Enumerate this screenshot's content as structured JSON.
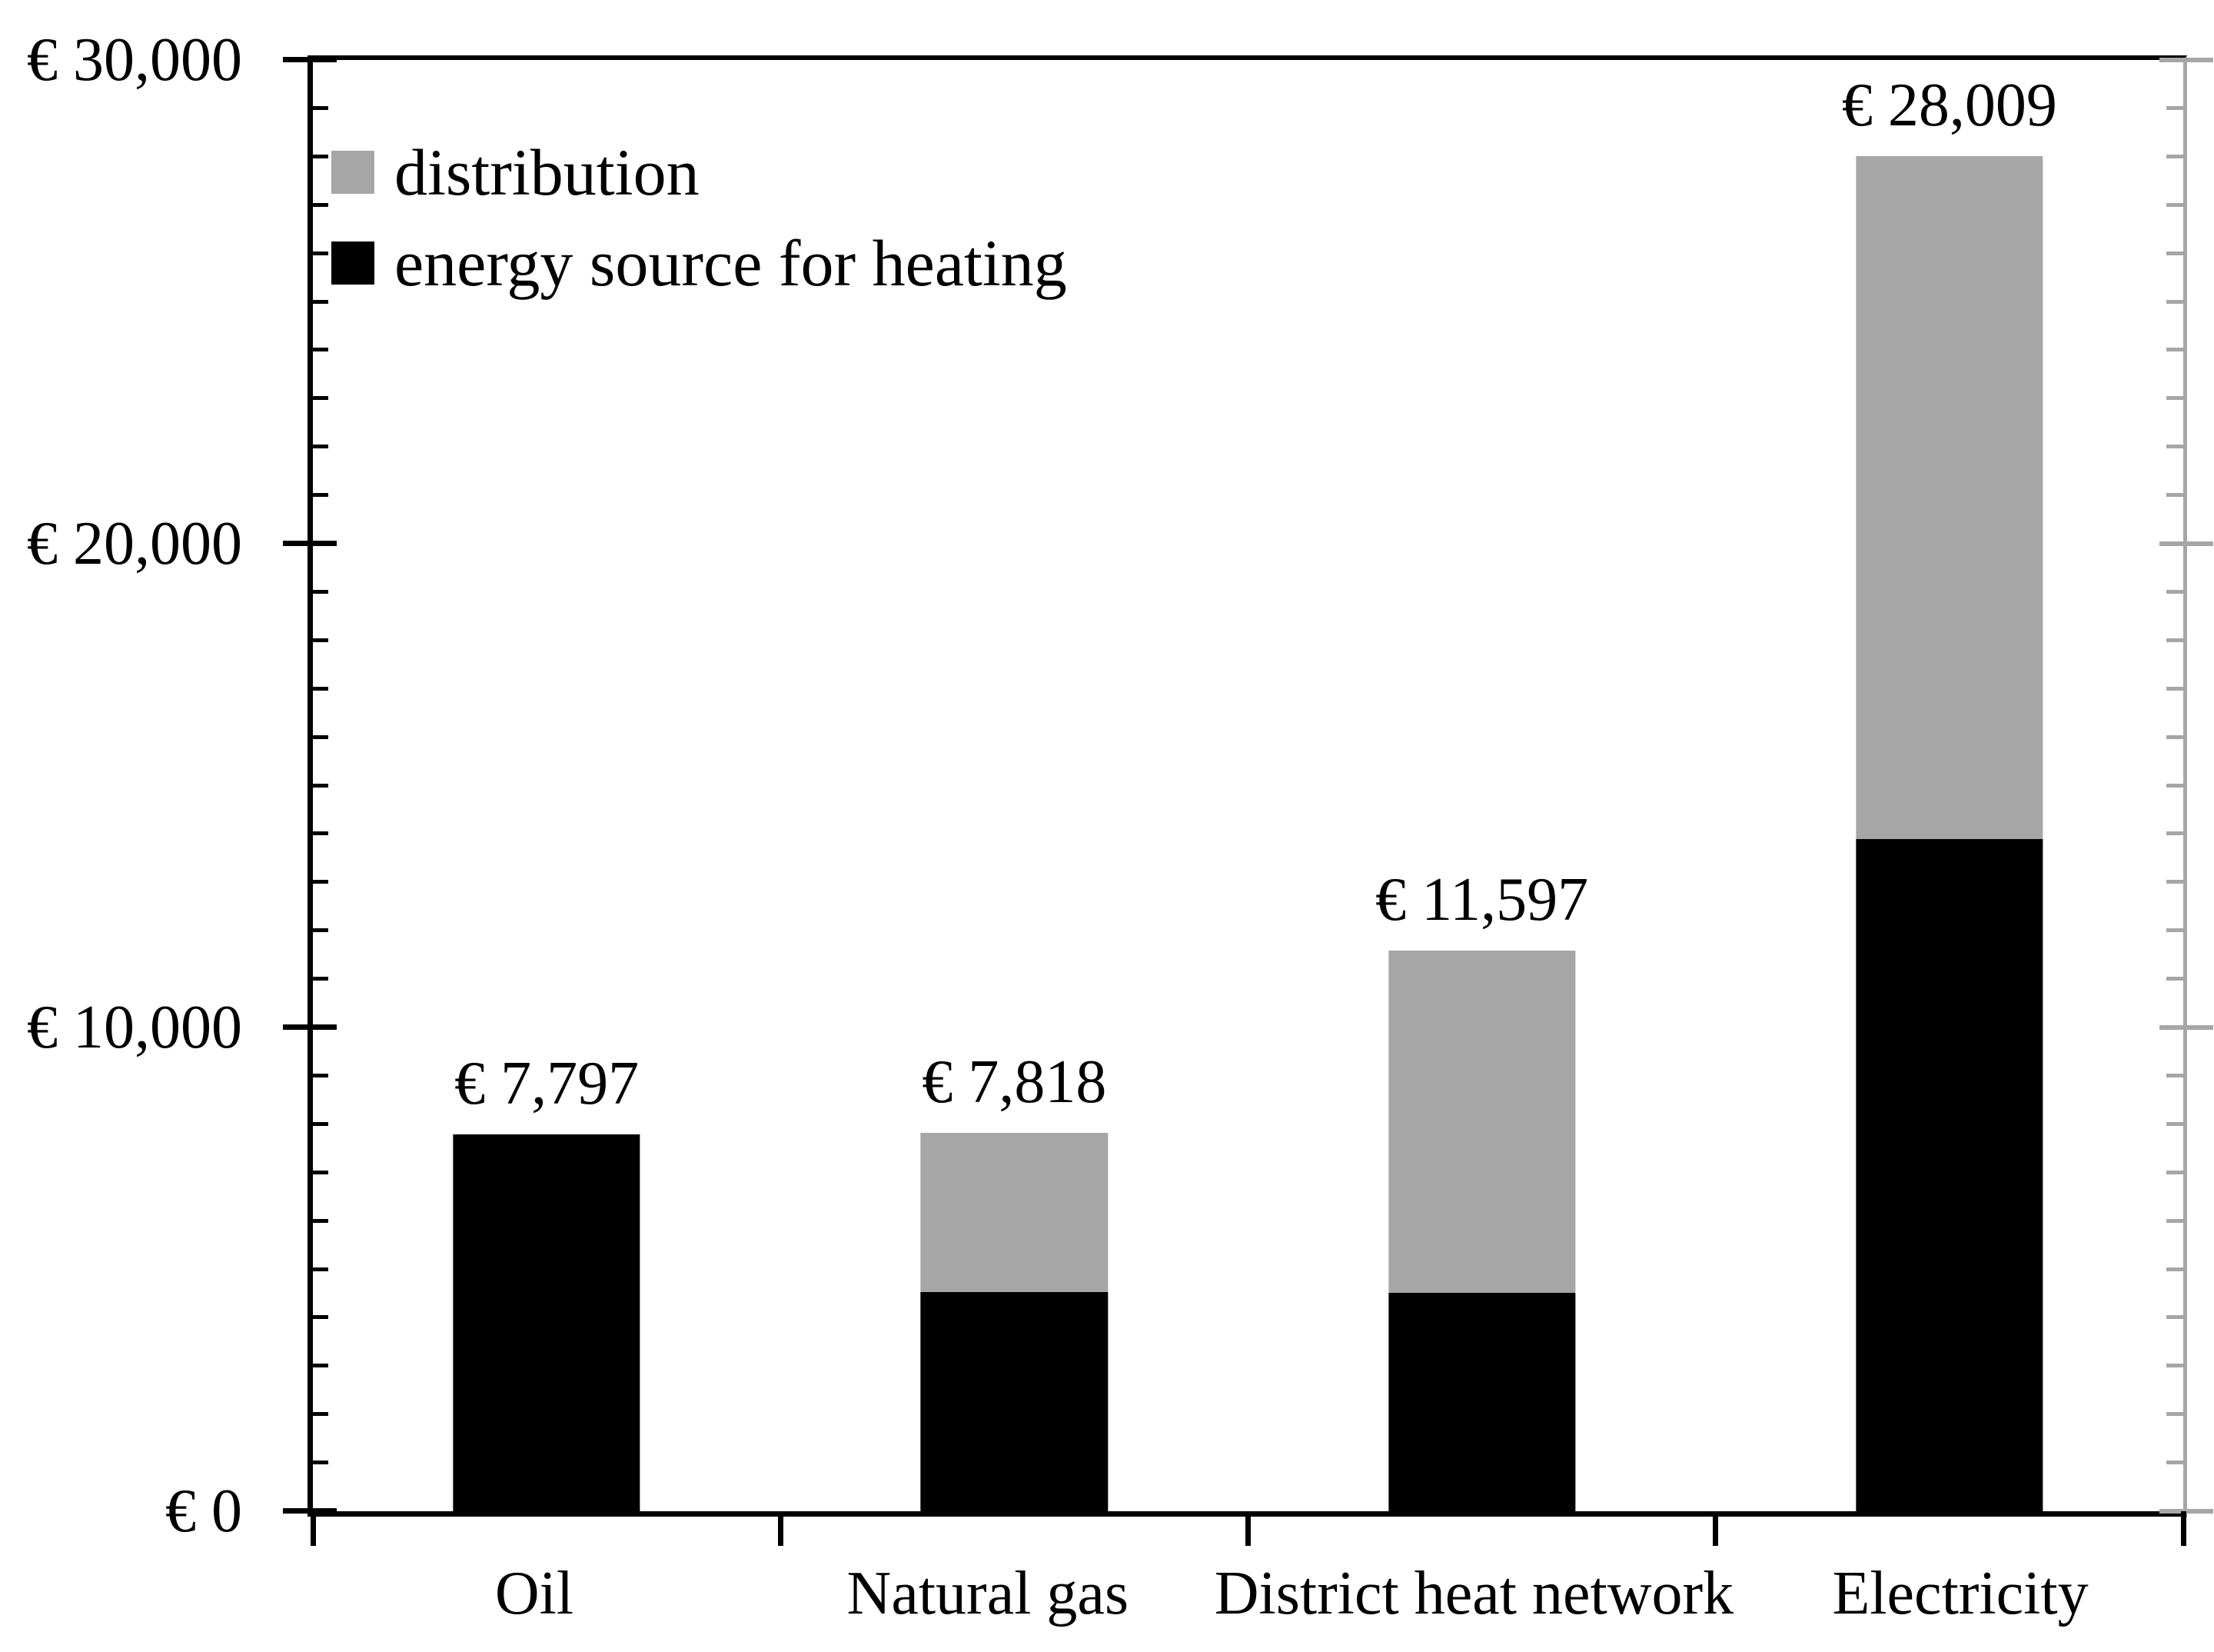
{
  "page": {
    "background": "#FFFFFF"
  },
  "chart_data": {
    "type": "bar",
    "stacked": true,
    "title": "",
    "xlabel": "",
    "ylabel": "",
    "categories": [
      "Oil",
      "Natural gas",
      "District heat network",
      "Electricity"
    ],
    "series": [
      {
        "name": "distribution",
        "color": "#A6A6A6",
        "values": [
          0,
          3288,
          7077,
          14110
        ]
      },
      {
        "name": "energy source for heating",
        "color": "#000000",
        "values": [
          7797,
          4530,
          4520,
          13899
        ]
      }
    ],
    "stack_bottom_to_top": [
      "energy source for heating",
      "distribution"
    ],
    "totals": [
      7797,
      7818,
      11597,
      28009
    ],
    "data_labels": [
      "€ 7,797",
      "€ 7,818",
      "€ 11,597",
      "€ 28,009"
    ],
    "ylim": [
      0,
      30000
    ],
    "y_major_ticks": [
      {
        "value": 0,
        "label": "€ 0"
      },
      {
        "value": 10000,
        "label": "€ 10,000"
      },
      {
        "value": 20000,
        "label": "€ 20,000"
      },
      {
        "value": 30000,
        "label": "€ 30,000"
      }
    ],
    "y_minor_tick_interval": 1000,
    "grid": false,
    "legend": {
      "position": "top-left-inside",
      "entries": [
        {
          "label": "distribution",
          "color": "#A6A6A6"
        },
        {
          "label": "energy source for heating",
          "color": "#000000"
        }
      ]
    },
    "axis_colors": {
      "left": "#000000",
      "top": "#000000",
      "bottom": "#000000",
      "right": "#A6A6A6"
    },
    "bar_width_fraction_of_slot": 0.4
  }
}
